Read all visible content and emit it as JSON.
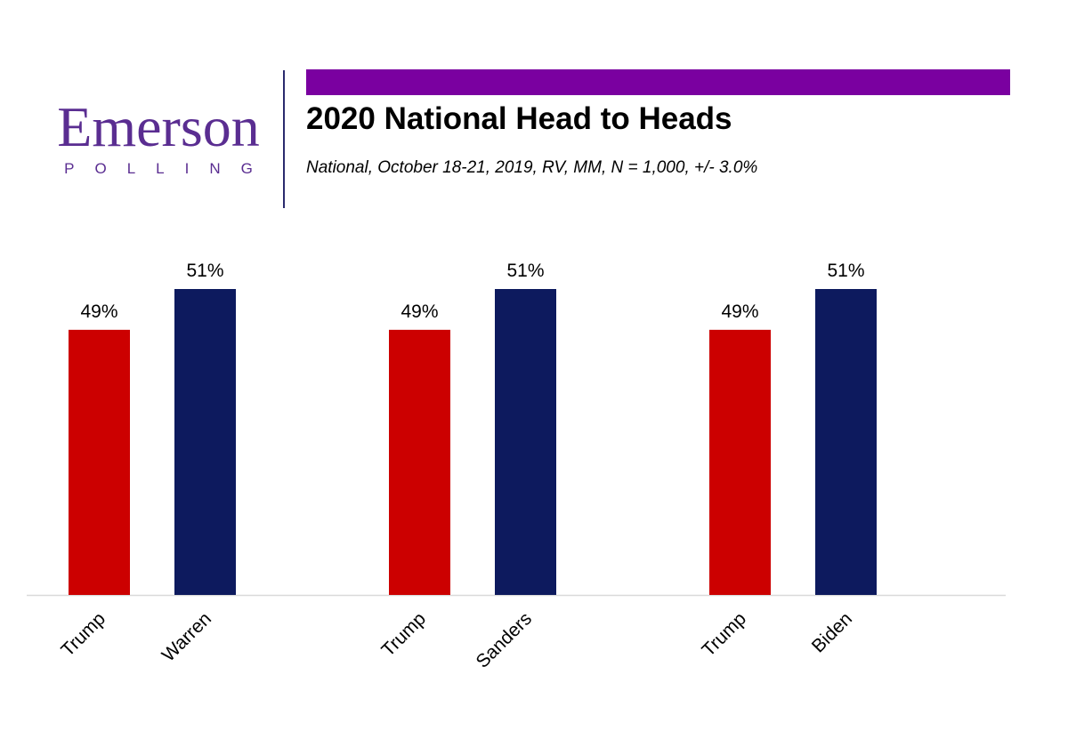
{
  "header": {
    "logo_name": "Emerson",
    "logo_sub": "POLLING",
    "title": "2020 National Head to Heads",
    "subtitle": "National, October 18-21, 2019, RV, MM, N = 1,000,  +/- 3.0%"
  },
  "colors": {
    "accent": "#7a00a0",
    "logo": "#5a2d91",
    "republican": "#cc0000",
    "democrat": "#0d1a5e",
    "axis": "#d9d9d9"
  },
  "chart_data": {
    "type": "bar",
    "title": "2020 National Head to Heads",
    "ylim": [
      0,
      100
    ],
    "grid": false,
    "bars": [
      {
        "label": "Trump",
        "value": 49,
        "value_label": "49%",
        "color": "#cc0000"
      },
      {
        "label": "Warren",
        "value": 51,
        "value_label": "51%",
        "color": "#0d1a5e"
      },
      {
        "label": "Trump",
        "value": 49,
        "value_label": "49%",
        "color": "#cc0000"
      },
      {
        "label": "Sanders",
        "value": 51,
        "value_label": "51%",
        "color": "#0d1a5e"
      },
      {
        "label": "Trump",
        "value": 49,
        "value_label": "49%",
        "color": "#cc0000"
      },
      {
        "label": "Biden",
        "value": 51,
        "value_label": "51%",
        "color": "#0d1a5e"
      }
    ]
  }
}
